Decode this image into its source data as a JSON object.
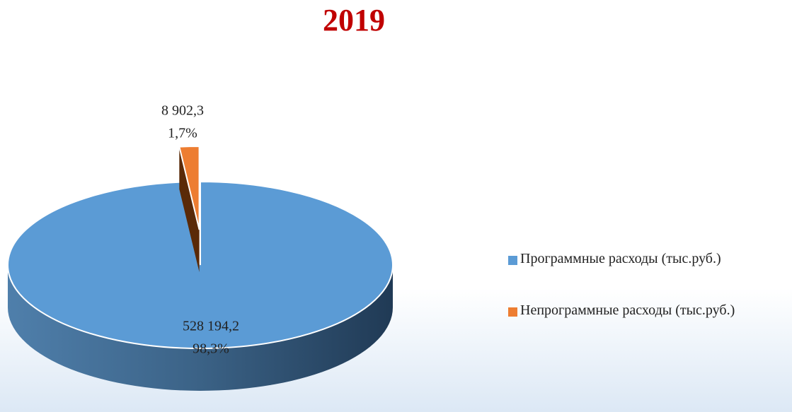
{
  "chart_data": {
    "type": "pie",
    "title": "2019",
    "categories": [
      "Программные расходы (тыс.руб.)",
      "Непрограммные расходы (тыс.руб.)"
    ],
    "values": [
      528194.2,
      8902.3
    ],
    "value_labels": [
      "528 194,2",
      "8 902,3"
    ],
    "percents": [
      98.3,
      1.7
    ],
    "percent_labels": [
      "98,3%",
      "1,7%"
    ],
    "colors": [
      "#5b9bd5",
      "#ed7d31"
    ],
    "legend": "right"
  }
}
